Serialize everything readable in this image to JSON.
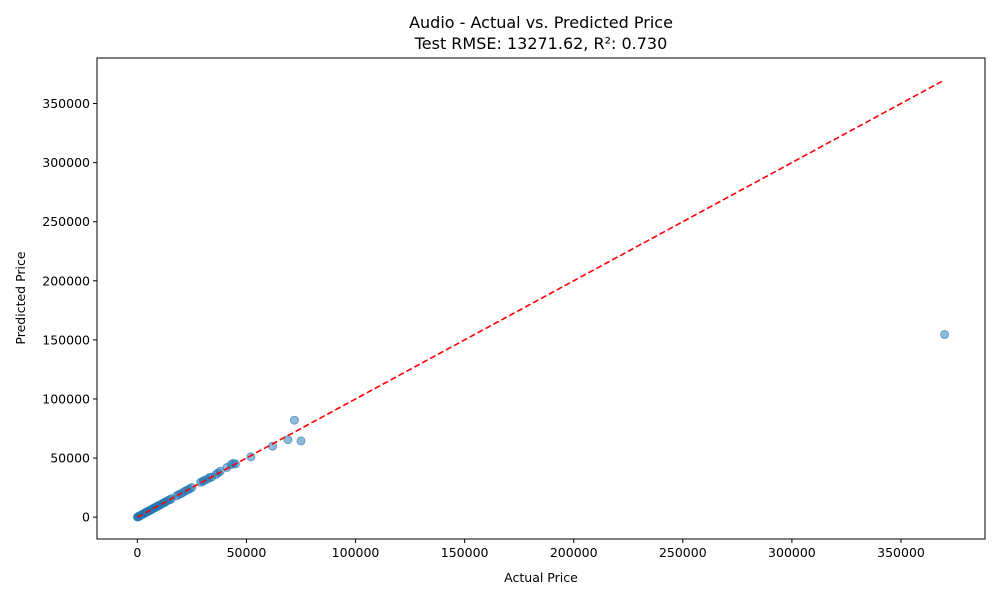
{
  "chart_data": {
    "type": "scatter",
    "title_line1": "Audio - Actual vs. Predicted Price",
    "title_line2": "Test RMSE: 13271.62, R²: 0.730",
    "xlabel": "Actual Price",
    "ylabel": "Predicted Price",
    "xlim": [
      -18500,
      388500
    ],
    "ylim": [
      -18500,
      388500
    ],
    "x_ticks": [
      0,
      50000,
      100000,
      150000,
      200000,
      250000,
      300000,
      350000
    ],
    "x_tick_labels": [
      "0",
      "50000",
      "100000",
      "150000",
      "200000",
      "250000",
      "300000",
      "350000"
    ],
    "y_ticks": [
      0,
      50000,
      100000,
      150000,
      200000,
      250000,
      300000,
      350000
    ],
    "y_tick_labels": [
      "0",
      "50000",
      "100000",
      "150000",
      "200000",
      "250000",
      "300000",
      "350000"
    ],
    "grid": false,
    "reference_line": {
      "x": [
        0,
        370000
      ],
      "y": [
        0,
        370000
      ],
      "color": "#ff0000",
      "style": "dashed"
    },
    "point_color": "#1f77b4",
    "points": [
      {
        "x": 0,
        "y": 0
      },
      {
        "x": 300,
        "y": 400
      },
      {
        "x": 600,
        "y": 500
      },
      {
        "x": 900,
        "y": 800
      },
      {
        "x": 1200,
        "y": 1100
      },
      {
        "x": 1500,
        "y": 1600
      },
      {
        "x": 2000,
        "y": 1900
      },
      {
        "x": 2500,
        "y": 2600
      },
      {
        "x": 3000,
        "y": 2900
      },
      {
        "x": 3500,
        "y": 3600
      },
      {
        "x": 4000,
        "y": 4100
      },
      {
        "x": 4500,
        "y": 4400
      },
      {
        "x": 5000,
        "y": 5100
      },
      {
        "x": 5500,
        "y": 5400
      },
      {
        "x": 6000,
        "y": 6100
      },
      {
        "x": 6500,
        "y": 6400
      },
      {
        "x": 7000,
        "y": 7000
      },
      {
        "x": 7500,
        "y": 7600
      },
      {
        "x": 8000,
        "y": 7900
      },
      {
        "x": 8500,
        "y": 8600
      },
      {
        "x": 9000,
        "y": 9000
      },
      {
        "x": 9500,
        "y": 9400
      },
      {
        "x": 10000,
        "y": 10100
      },
      {
        "x": 10500,
        "y": 10400
      },
      {
        "x": 11000,
        "y": 11000
      },
      {
        "x": 12000,
        "y": 12100
      },
      {
        "x": 12500,
        "y": 12400
      },
      {
        "x": 13000,
        "y": 13000
      },
      {
        "x": 14000,
        "y": 14100
      },
      {
        "x": 15000,
        "y": 14800
      },
      {
        "x": 15500,
        "y": 15600
      },
      {
        "x": 18000,
        "y": 18000
      },
      {
        "x": 19000,
        "y": 19200
      },
      {
        "x": 20000,
        "y": 19800
      },
      {
        "x": 21000,
        "y": 21000
      },
      {
        "x": 22000,
        "y": 22200
      },
      {
        "x": 23000,
        "y": 23000
      },
      {
        "x": 24000,
        "y": 24000
      },
      {
        "x": 25000,
        "y": 25100
      },
      {
        "x": 29000,
        "y": 29500
      },
      {
        "x": 30000,
        "y": 30200
      },
      {
        "x": 30500,
        "y": 31000
      },
      {
        "x": 32000,
        "y": 32000
      },
      {
        "x": 33000,
        "y": 33500
      },
      {
        "x": 34000,
        "y": 33800
      },
      {
        "x": 36000,
        "y": 36000
      },
      {
        "x": 37000,
        "y": 37500
      },
      {
        "x": 38000,
        "y": 38800
      },
      {
        "x": 41000,
        "y": 42000
      },
      {
        "x": 43000,
        "y": 44500
      },
      {
        "x": 44000,
        "y": 45500
      },
      {
        "x": 45000,
        "y": 45000
      },
      {
        "x": 52000,
        "y": 51000
      },
      {
        "x": 62000,
        "y": 60000
      },
      {
        "x": 69000,
        "y": 65500
      },
      {
        "x": 72000,
        "y": 82000
      },
      {
        "x": 75000,
        "y": 64500
      },
      {
        "x": 370000,
        "y": 154500
      }
    ]
  }
}
